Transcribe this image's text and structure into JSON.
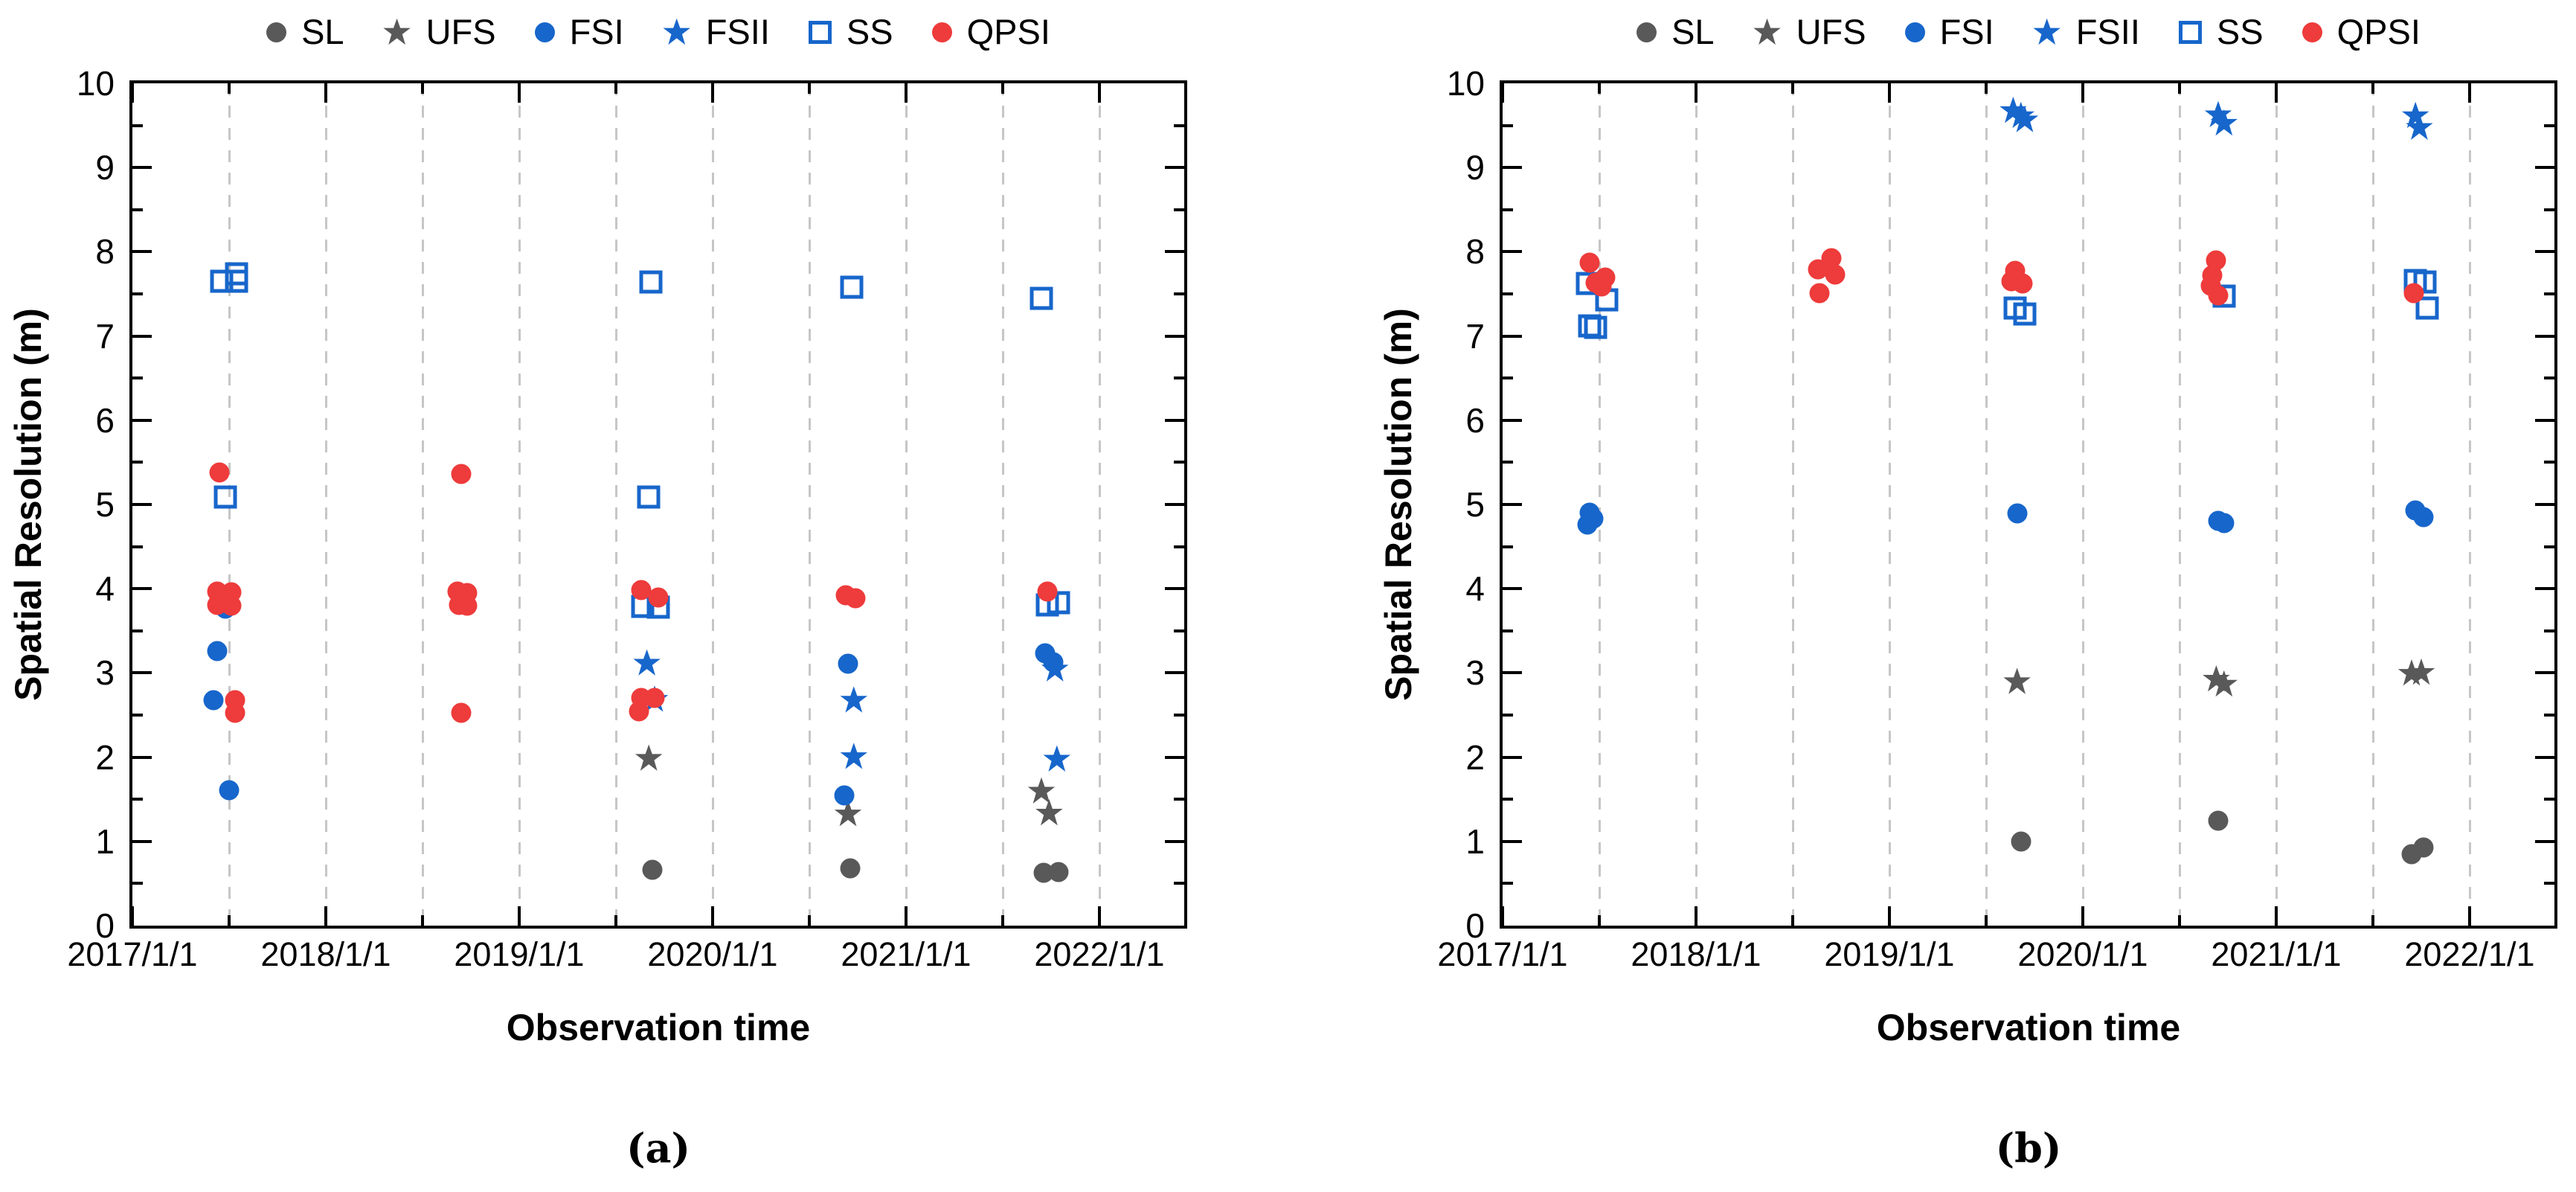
{
  "figure": {
    "colors": {
      "blue": "#1766CB",
      "red": "#EE3B3B",
      "gray": "#595959",
      "grid": "#c6c6c6",
      "axis": "#000000",
      "background": "#ffffff"
    },
    "legend_items": [
      {
        "label": "SL",
        "marker": "circle",
        "color": "gray"
      },
      {
        "label": "UFS",
        "marker": "star",
        "color": "gray"
      },
      {
        "label": "FSI",
        "marker": "circle",
        "color": "blue"
      },
      {
        "label": "FSII",
        "marker": "star",
        "color": "blue"
      },
      {
        "label": "SS",
        "marker": "square-open",
        "color": "blue"
      },
      {
        "label": "QPSI",
        "marker": "circle",
        "color": "red"
      }
    ]
  },
  "chart_data": [
    {
      "type": "scatter",
      "caption": "(a)",
      "xlabel": "Observation time",
      "ylabel": "Spatial Resolution (m)",
      "xlim": [
        2017.0,
        2022.44
      ],
      "ylim": [
        0,
        10
      ],
      "grid": "vertical-dashed-every-half-year",
      "legend_position": "top",
      "xtick_labels": [
        "2017/1/1",
        "2018/1/1",
        "2019/1/1",
        "2020/1/1",
        "2021/1/1",
        "2022/1/1"
      ],
      "xtick_years": [
        2017,
        2018,
        2019,
        2020,
        2021,
        2022
      ],
      "ytick_labels": [
        "0",
        "1",
        "2",
        "3",
        "4",
        "5",
        "6",
        "7",
        "8",
        "9",
        "10"
      ],
      "series": [
        {
          "name": "SL",
          "marker": "circle",
          "color": "gray",
          "points": [
            [
              2019.69,
              0.66
            ],
            [
              2020.71,
              0.68
            ],
            [
              2021.71,
              0.63
            ],
            [
              2021.79,
              0.64
            ]
          ]
        },
        {
          "name": "UFS",
          "marker": "star",
          "color": "gray",
          "points": [
            [
              2019.67,
              1.99
            ],
            [
              2020.7,
              1.33
            ],
            [
              2021.7,
              1.6
            ],
            [
              2021.74,
              1.34
            ]
          ]
        },
        {
          "name": "FSI",
          "marker": "circle",
          "color": "blue",
          "points": [
            [
              2017.44,
              3.26
            ],
            [
              2017.48,
              3.76
            ],
            [
              2017.42,
              2.68
            ],
            [
              2017.5,
              1.61
            ],
            [
              2020.7,
              3.11
            ],
            [
              2020.68,
              1.55
            ],
            [
              2021.72,
              3.23
            ],
            [
              2021.76,
              3.13
            ]
          ]
        },
        {
          "name": "FSII",
          "marker": "star",
          "color": "blue",
          "points": [
            [
              2019.66,
              3.12
            ],
            [
              2019.7,
              2.69
            ],
            [
              2020.73,
              2.68
            ],
            [
              2020.73,
              2.01
            ],
            [
              2021.77,
              3.05
            ],
            [
              2021.78,
              1.98
            ]
          ]
        },
        {
          "name": "SS",
          "marker": "square-open",
          "color": "blue",
          "points": [
            [
              2017.46,
              7.65
            ],
            [
              2017.54,
              7.74
            ],
            [
              2017.54,
              7.65
            ],
            [
              2017.48,
              5.09
            ],
            [
              2019.68,
              7.64
            ],
            [
              2019.67,
              5.09
            ],
            [
              2019.64,
              3.79
            ],
            [
              2019.72,
              3.78
            ],
            [
              2020.72,
              7.58
            ],
            [
              2021.7,
              7.45
            ],
            [
              2021.73,
              3.81
            ],
            [
              2021.79,
              3.83
            ]
          ]
        },
        {
          "name": "QPSI",
          "marker": "circle",
          "color": "red",
          "points": [
            [
              2017.45,
              5.38
            ],
            [
              2017.44,
              3.97
            ],
            [
              2017.51,
              3.96
            ],
            [
              2017.44,
              3.81
            ],
            [
              2017.51,
              3.8
            ],
            [
              2017.53,
              2.68
            ],
            [
              2017.53,
              2.53
            ],
            [
              2018.7,
              5.36
            ],
            [
              2018.68,
              3.97
            ],
            [
              2018.73,
              3.95
            ],
            [
              2018.69,
              3.81
            ],
            [
              2018.73,
              3.8
            ],
            [
              2018.7,
              2.53
            ],
            [
              2019.63,
              3.98
            ],
            [
              2019.72,
              3.9
            ],
            [
              2019.63,
              2.7
            ],
            [
              2019.7,
              2.7
            ],
            [
              2019.62,
              2.54
            ],
            [
              2020.69,
              3.92
            ],
            [
              2020.74,
              3.89
            ],
            [
              2021.73,
              3.97
            ]
          ]
        }
      ]
    },
    {
      "type": "scatter",
      "caption": "(b)",
      "xlabel": "Observation time",
      "ylabel": "Spatial Resolution (m)",
      "xlim": [
        2017.0,
        2022.44
      ],
      "ylim": [
        0,
        10
      ],
      "grid": "vertical-dashed-every-half-year",
      "legend_position": "top",
      "xtick_labels": [
        "2017/1/1",
        "2018/1/1",
        "2019/1/1",
        "2020/1/1",
        "2021/1/1",
        "2022/1/1"
      ],
      "xtick_years": [
        2017,
        2018,
        2019,
        2020,
        2021,
        2022
      ],
      "ytick_labels": [
        "0",
        "1",
        "2",
        "3",
        "4",
        "5",
        "6",
        "7",
        "8",
        "9",
        "10"
      ],
      "series": [
        {
          "name": "SL",
          "marker": "circle",
          "color": "gray",
          "points": [
            [
              2019.68,
              1.0
            ],
            [
              2020.7,
              1.25
            ],
            [
              2021.7,
              0.85
            ],
            [
              2021.76,
              0.93
            ]
          ]
        },
        {
          "name": "UFS",
          "marker": "star",
          "color": "gray",
          "points": [
            [
              2019.66,
              2.9
            ],
            [
              2020.69,
              2.93
            ],
            [
              2020.73,
              2.87
            ],
            [
              2021.7,
              3.0
            ],
            [
              2021.75,
              3.01
            ]
          ]
        },
        {
          "name": "FSI",
          "marker": "circle",
          "color": "blue",
          "points": [
            [
              2017.45,
              4.9
            ],
            [
              2017.47,
              4.83
            ],
            [
              2017.44,
              4.76
            ],
            [
              2019.66,
              4.89
            ],
            [
              2020.7,
              4.81
            ],
            [
              2020.73,
              4.78
            ],
            [
              2021.72,
              4.93
            ],
            [
              2021.76,
              4.85
            ]
          ]
        },
        {
          "name": "FSII",
          "marker": "star",
          "color": "blue",
          "points": [
            [
              2019.64,
              9.68
            ],
            [
              2019.68,
              9.62
            ],
            [
              2019.7,
              9.57
            ],
            [
              2020.7,
              9.63
            ],
            [
              2020.73,
              9.53
            ],
            [
              2021.72,
              9.62
            ],
            [
              2021.74,
              9.48
            ]
          ]
        },
        {
          "name": "SS",
          "marker": "square-open",
          "color": "blue",
          "points": [
            [
              2017.44,
              7.62
            ],
            [
              2017.54,
              7.43
            ],
            [
              2017.45,
              7.12
            ],
            [
              2017.48,
              7.1
            ],
            [
              2019.65,
              7.33
            ],
            [
              2019.7,
              7.26
            ],
            [
              2020.73,
              7.47
            ],
            [
              2021.72,
              7.66
            ],
            [
              2021.77,
              7.64
            ],
            [
              2021.78,
              7.33
            ]
          ]
        },
        {
          "name": "QPSI",
          "marker": "circle",
          "color": "red",
          "points": [
            [
              2017.45,
              7.87
            ],
            [
              2017.48,
              7.63
            ],
            [
              2017.53,
              7.69
            ],
            [
              2017.51,
              7.59
            ],
            [
              2018.63,
              7.79
            ],
            [
              2018.64,
              7.51
            ],
            [
              2018.7,
              7.92
            ],
            [
              2018.72,
              7.73
            ],
            [
              2019.63,
              7.65
            ],
            [
              2019.65,
              7.77
            ],
            [
              2019.69,
              7.62
            ],
            [
              2020.66,
              7.6
            ],
            [
              2020.67,
              7.72
            ],
            [
              2020.69,
              7.9
            ],
            [
              2020.7,
              7.48
            ],
            [
              2021.71,
              7.51
            ]
          ]
        }
      ]
    }
  ]
}
